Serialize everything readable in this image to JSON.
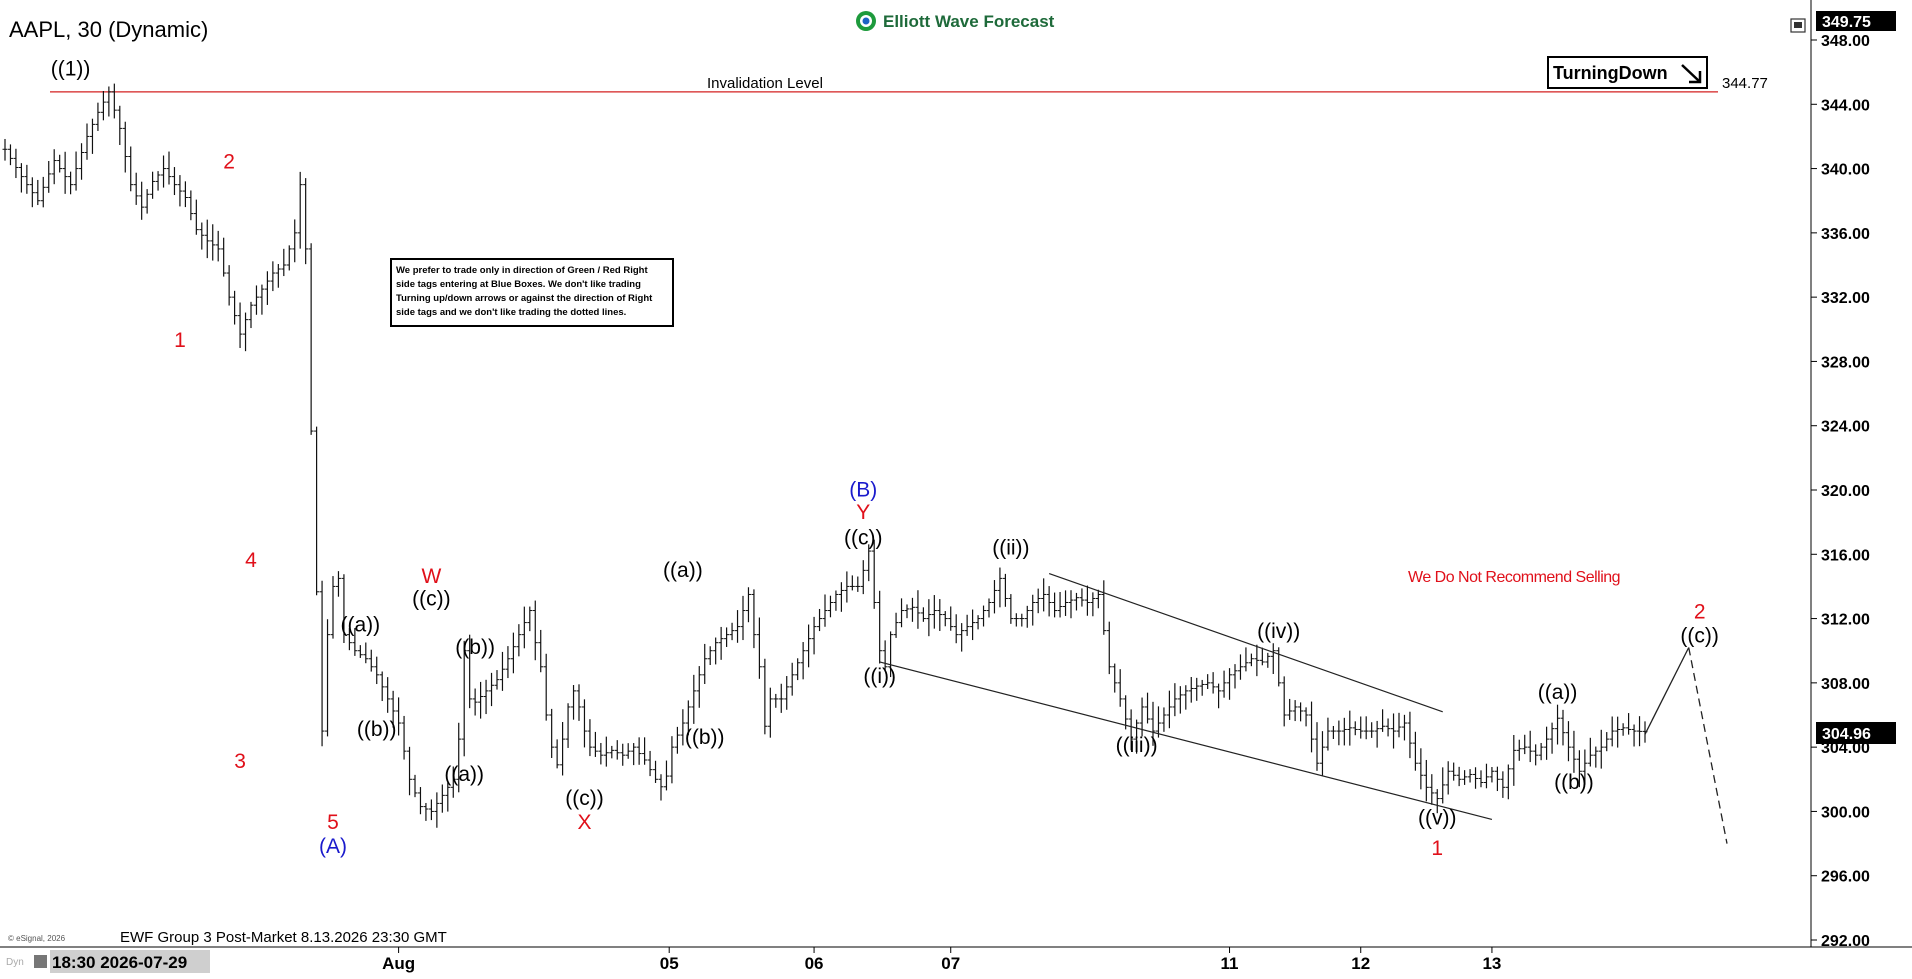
{
  "header": {
    "symbol_title": "AAPL, 30 (Dynamic)",
    "brand": "Elliott Wave Forecast",
    "footer_note": "EWF Group 3 Post-Market 8.13.2026 23:30 GMT",
    "copyright": "© eSignal, 2026",
    "cursor_date": "18:30 2026-07-29"
  },
  "colors": {
    "red": "#e0101a",
    "blue": "#1a1acc",
    "black": "#000000",
    "price_tag_bg": "#000000",
    "price_tag_fg": "#ffffff"
  },
  "notes": {
    "disclaimer": [
      "We prefer to trade only in direction of Green / Red Right",
      "side tags entering at Blue Boxes. We don't like trading",
      "Turning up/down arrows or against the direction of Right",
      "side tags and we don't like trading the dotted lines."
    ],
    "recommendation": "We Do Not Recommend Selling",
    "turning_tag": "TurningDown",
    "turning_icon": "down-right-arrow-icon"
  },
  "chart_data": {
    "type": "line",
    "title": "AAPL, 30 (Dynamic)",
    "xlabel": "",
    "ylabel": "",
    "x_ticks": [
      "Aug",
      "05",
      "06",
      "07",
      "11",
      "12",
      "13"
    ],
    "y_ticks": [
      "348.00",
      "344.00",
      "340.00",
      "336.00",
      "332.00",
      "328.00",
      "324.00",
      "320.00",
      "316.00",
      "312.00",
      "308.00",
      "304.00",
      "300.00",
      "296.00",
      "292.00"
    ],
    "ylim": [
      292,
      349.75
    ],
    "last_price": "304.96",
    "top_price": "349.75",
    "invalidation": {
      "label": "Invalidation Level",
      "value": 344.77,
      "value_label": "344.77"
    },
    "grid": false,
    "price_path": [
      [
        0,
        341.2
      ],
      [
        3,
        339.5
      ],
      [
        6,
        338.0
      ],
      [
        9,
        340.5
      ],
      [
        12,
        339.0
      ],
      [
        15,
        342.0
      ],
      [
        17,
        343.5
      ],
      [
        19,
        344.77
      ],
      [
        21,
        342.5
      ],
      [
        23,
        339.0
      ],
      [
        25,
        337.6
      ],
      [
        27,
        339.2
      ],
      [
        29,
        340.0
      ],
      [
        31,
        339.0
      ],
      [
        33,
        338.2
      ],
      [
        35,
        336.2
      ],
      [
        37,
        335.5
      ],
      [
        39,
        335.0
      ],
      [
        41,
        332.0
      ],
      [
        43,
        329.7
      ],
      [
        45,
        331.5
      ],
      [
        47,
        332.5
      ],
      [
        49,
        333.5
      ],
      [
        51,
        334.0
      ],
      [
        53,
        336.0
      ],
      [
        54,
        339.0
      ],
      [
        55,
        335.0
      ],
      [
        56.5,
        318.0
      ],
      [
        58,
        305.0
      ],
      [
        59,
        311.0
      ],
      [
        60,
        314.0
      ],
      [
        61,
        314.5
      ],
      [
        62,
        311.0
      ],
      [
        64,
        310.0
      ],
      [
        66,
        309.5
      ],
      [
        68,
        308.5
      ],
      [
        70,
        307.0
      ],
      [
        72,
        305.5
      ],
      [
        74,
        302.0
      ],
      [
        76,
        300.3
      ],
      [
        78,
        300.0
      ],
      [
        80,
        301.0
      ],
      [
        82,
        302.0
      ],
      [
        83,
        304.5
      ],
      [
        84,
        310.0
      ],
      [
        85,
        307.0
      ],
      [
        86,
        306.8
      ],
      [
        88,
        307.5
      ],
      [
        90,
        308.2
      ],
      [
        92,
        309.5
      ],
      [
        94,
        311.0
      ],
      [
        96,
        312.5
      ],
      [
        97,
        310.5
      ],
      [
        98,
        309.0
      ],
      [
        99,
        306.0
      ],
      [
        100,
        304.0
      ],
      [
        101,
        302.9
      ],
      [
        102,
        304.5
      ],
      [
        103,
        306.5
      ],
      [
        104,
        307.5
      ],
      [
        105,
        306.5
      ],
      [
        106,
        305.0
      ],
      [
        107,
        304.0
      ],
      [
        109,
        303.5
      ],
      [
        111,
        303.8
      ],
      [
        113,
        303.5
      ],
      [
        115,
        304.0
      ],
      [
        117,
        303.2
      ],
      [
        119,
        302.0
      ],
      [
        120.5,
        301.3
      ],
      [
        122,
        304.0
      ],
      [
        124,
        305.5
      ],
      [
        126,
        307.5
      ],
      [
        128,
        309.5
      ],
      [
        130,
        310.5
      ],
      [
        132,
        311.0
      ],
      [
        134,
        311.5
      ],
      [
        136,
        313.5
      ],
      [
        137,
        311.0
      ],
      [
        138,
        309.0
      ],
      [
        139,
        305.3
      ],
      [
        140,
        307.0
      ],
      [
        142,
        307.0
      ],
      [
        144,
        308.5
      ],
      [
        146,
        310.0
      ],
      [
        148,
        311.5
      ],
      [
        150,
        312.5
      ],
      [
        152,
        313.5
      ],
      [
        154,
        314.0
      ],
      [
        156,
        314.0
      ],
      [
        157,
        315.0
      ],
      [
        158,
        316.2
      ],
      [
        159,
        313.0
      ],
      [
        160,
        310.0
      ],
      [
        161,
        309.0
      ],
      [
        162,
        311.0
      ],
      [
        164,
        312.5
      ],
      [
        166,
        312.7
      ],
      [
        168,
        312.0
      ],
      [
        170,
        312.5
      ],
      [
        172,
        312.0
      ],
      [
        174,
        311.0
      ],
      [
        176,
        311.5
      ],
      [
        178,
        312.0
      ],
      [
        180,
        313.0
      ],
      [
        182,
        314.5
      ],
      [
        184,
        312.0
      ],
      [
        186,
        312.0
      ],
      [
        188,
        313.0
      ],
      [
        190,
        313.5
      ],
      [
        192,
        312.5
      ],
      [
        194,
        313.0
      ],
      [
        196,
        313.3
      ],
      [
        198,
        313.0
      ],
      [
        200,
        313.5
      ],
      [
        202,
        309.0
      ],
      [
        204,
        307.0
      ],
      [
        206,
        304.5
      ],
      [
        208,
        306.5
      ],
      [
        210,
        305.0
      ],
      [
        212,
        306.0
      ],
      [
        214,
        307.0
      ],
      [
        216,
        307.5
      ],
      [
        218,
        307.8
      ],
      [
        220,
        308.0
      ],
      [
        222,
        307.5
      ],
      [
        224,
        308.5
      ],
      [
        226,
        309.0
      ],
      [
        228,
        309.5
      ],
      [
        230,
        309.3
      ],
      [
        232,
        310.0
      ],
      [
        234,
        306.0
      ],
      [
        236,
        306.5
      ],
      [
        238,
        306.0
      ],
      [
        240,
        303.0
      ],
      [
        242,
        305.0
      ],
      [
        244,
        305.0
      ],
      [
        246,
        305.2
      ],
      [
        248,
        305.0
      ],
      [
        250,
        305.0
      ],
      [
        252,
        305.3
      ],
      [
        254,
        305.0
      ],
      [
        256,
        305.5
      ],
      [
        258,
        303.0
      ],
      [
        260,
        301.5
      ],
      [
        262,
        300.8
      ],
      [
        264,
        302.5
      ],
      [
        266,
        302.0
      ],
      [
        268,
        302.3
      ],
      [
        270,
        301.8
      ],
      [
        272,
        302.5
      ],
      [
        274,
        301.5
      ],
      [
        276,
        303.8
      ],
      [
        278,
        304.0
      ],
      [
        280,
        303.5
      ],
      [
        282,
        304.5
      ],
      [
        284,
        305.8
      ],
      [
        286,
        304.0
      ],
      [
        288,
        302.5
      ],
      [
        290,
        303.5
      ],
      [
        292,
        304.0
      ],
      [
        294,
        305.0
      ],
      [
        296,
        305.2
      ],
      [
        298,
        305.0
      ],
      [
        300,
        304.96
      ]
    ],
    "x_tick_index": {
      "Aug": 72,
      "05": 121.5,
      "06": 148,
      "07": 173,
      "11": 224,
      "12": 248,
      "13": 272
    },
    "channel_lines": [
      {
        "from": [
          160,
          309.3
        ],
        "to": [
          272,
          299.5
        ]
      },
      {
        "from": [
          191,
          314.8
        ],
        "to": [
          263,
          306.2
        ]
      }
    ],
    "projection": {
      "solid": {
        "from": [
          300,
          304.8
        ],
        "to": [
          308,
          310.2
        ]
      },
      "dashed": {
        "from": [
          308,
          310.2
        ],
        "to": [
          315,
          298.0
        ]
      }
    },
    "annotations": [
      {
        "text": "((1))",
        "x": 12,
        "y": 345.8,
        "color": "black"
      },
      {
        "text": "2",
        "x": 41,
        "y": 340.0,
        "color": "red"
      },
      {
        "text": "1",
        "x": 32,
        "y": 328.9,
        "color": "red"
      },
      {
        "text": "3",
        "x": 43,
        "y": 302.7,
        "color": "red"
      },
      {
        "text": "4",
        "x": 45,
        "y": 315.2,
        "color": "red"
      },
      {
        "text": "5",
        "x": 60,
        "y": 298.9,
        "color": "red"
      },
      {
        "text": "(A)",
        "x": 60,
        "y": 297.4,
        "color": "blue"
      },
      {
        "text": "((a))",
        "x": 65,
        "y": 311.2,
        "color": "black"
      },
      {
        "text": "((b))",
        "x": 68,
        "y": 304.7,
        "color": "black"
      },
      {
        "text": "W",
        "x": 78,
        "y": 314.2,
        "color": "red"
      },
      {
        "text": "((c))",
        "x": 78,
        "y": 312.8,
        "color": "black"
      },
      {
        "text": "((b))",
        "x": 86,
        "y": 309.8,
        "color": "black"
      },
      {
        "text": "((a))",
        "x": 84,
        "y": 301.9,
        "color": "black"
      },
      {
        "text": "((c))",
        "x": 106,
        "y": 300.4,
        "color": "black"
      },
      {
        "text": "X",
        "x": 106,
        "y": 298.9,
        "color": "red"
      },
      {
        "text": "((a))",
        "x": 124,
        "y": 314.6,
        "color": "black"
      },
      {
        "text": "((b))",
        "x": 128,
        "y": 304.2,
        "color": "black"
      },
      {
        "text": "(B)",
        "x": 157,
        "y": 319.6,
        "color": "blue"
      },
      {
        "text": "Y",
        "x": 157,
        "y": 318.2,
        "color": "red"
      },
      {
        "text": "((c))",
        "x": 157,
        "y": 316.6,
        "color": "black"
      },
      {
        "text": "((i))",
        "x": 160,
        "y": 308.0,
        "color": "black"
      },
      {
        "text": "((ii))",
        "x": 184,
        "y": 316.0,
        "color": "black"
      },
      {
        "text": "((iii))",
        "x": 207,
        "y": 303.7,
        "color": "black"
      },
      {
        "text": "((iv))",
        "x": 233,
        "y": 310.8,
        "color": "black"
      },
      {
        "text": "((v))",
        "x": 262,
        "y": 299.2,
        "color": "black"
      },
      {
        "text": "1",
        "x": 262,
        "y": 297.3,
        "color": "red"
      },
      {
        "text": "((a))",
        "x": 284,
        "y": 307.0,
        "color": "black"
      },
      {
        "text": "((b))",
        "x": 287,
        "y": 301.4,
        "color": "black"
      },
      {
        "text": "2",
        "x": 310,
        "y": 312.0,
        "color": "red"
      },
      {
        "text": "((c))",
        "x": 310,
        "y": 310.5,
        "color": "black"
      }
    ]
  }
}
